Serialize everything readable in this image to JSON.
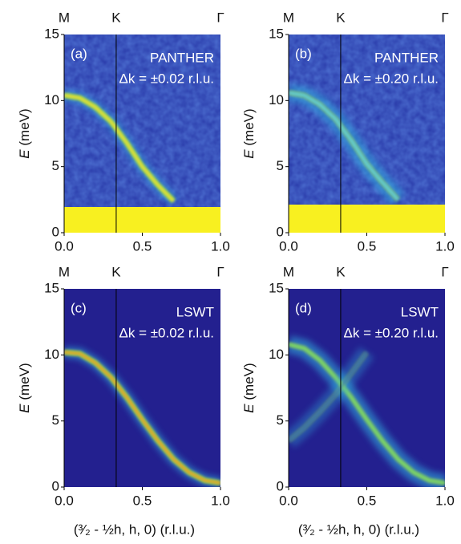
{
  "chart_data": [
    {
      "type": "dispersion",
      "panel_label": "(a)",
      "instrument": "PANTHER",
      "resolution": "Δk = ±0.02 r.l.u.",
      "ylabel_symbol": "E",
      "ylabel_unit": "(meV)",
      "top_ticks": [
        {
          "value": 0,
          "label": "M"
        },
        {
          "value": 0.333,
          "label": "K"
        },
        {
          "value": 1,
          "label": "Γ"
        }
      ],
      "x": [
        0,
        0.1,
        0.2,
        0.3,
        0.4,
        0.5,
        0.6,
        0.7,
        0.8,
        0.9,
        1.0
      ],
      "series": [
        {
          "color": "#f0e030",
          "values": [
            10.4,
            10.2,
            9.5,
            8.4,
            6.8,
            5.0,
            3.6,
            2.4,
            null,
            null,
            null
          ]
        }
      ],
      "xlim": [
        0,
        1
      ],
      "ylim": [
        0,
        15
      ],
      "xticks": [
        {
          "value": 0,
          "label": "0.0"
        },
        {
          "value": 0.5,
          "label": "0.5"
        },
        {
          "value": 1,
          "label": "1.0"
        }
      ],
      "yticks": [
        0,
        5,
        10,
        15
      ]
    },
    {
      "type": "dispersion",
      "panel_label": "(b)",
      "instrument": "PANTHER",
      "resolution": "Δk = ±0.20 r.l.u.",
      "ylabel_symbol": "E",
      "ylabel_unit": "(meV)",
      "top_ticks": [
        {
          "value": 0,
          "label": "M"
        },
        {
          "value": 0.333,
          "label": "K"
        },
        {
          "value": 1,
          "label": "Γ"
        }
      ],
      "x": [
        0,
        0.1,
        0.2,
        0.3,
        0.4,
        0.5,
        0.6,
        0.7,
        0.8,
        0.9,
        1.0
      ],
      "series": [
        {
          "color": "#60d0e0",
          "values": [
            10.6,
            10.4,
            9.7,
            8.6,
            7.0,
            5.2,
            3.8,
            2.5,
            null,
            null,
            null
          ]
        }
      ],
      "xlim": [
        0,
        1
      ],
      "ylim": [
        0,
        15
      ],
      "xticks": [
        {
          "value": 0,
          "label": "0.0"
        },
        {
          "value": 0.5,
          "label": "0.5"
        },
        {
          "value": 1,
          "label": "1.0"
        }
      ],
      "yticks": [
        0,
        5,
        10,
        15
      ]
    },
    {
      "type": "dispersion",
      "panel_label": "(c)",
      "instrument": "LSWT",
      "resolution": "Δk = ±0.02 r.l.u.",
      "ylabel_symbol": "E",
      "ylabel_unit": "(meV)",
      "xlabel": "(³⁄₂ - ½h, h, 0) (r.l.u.)",
      "top_ticks": [
        {
          "value": 0,
          "label": "M"
        },
        {
          "value": 0.333,
          "label": "K"
        },
        {
          "value": 1,
          "label": "Γ"
        }
      ],
      "x": [
        0,
        0.1,
        0.2,
        0.3,
        0.4,
        0.5,
        0.6,
        0.7,
        0.8,
        0.9,
        1.0
      ],
      "series": [
        {
          "color": "#f0a020",
          "values": [
            10.2,
            10.1,
            9.4,
            8.3,
            6.8,
            5.1,
            3.5,
            2.1,
            1.1,
            0.5,
            0.3
          ]
        }
      ],
      "xlim": [
        0,
        1
      ],
      "ylim": [
        0,
        15
      ],
      "xticks": [
        {
          "value": 0,
          "label": "0.0"
        },
        {
          "value": 0.5,
          "label": "0.5"
        },
        {
          "value": 1,
          "label": "1.0"
        }
      ],
      "yticks": [
        0,
        5,
        10,
        15
      ]
    },
    {
      "type": "dispersion",
      "panel_label": "(d)",
      "instrument": "LSWT",
      "resolution": "Δk = ±0.20 r.l.u.",
      "ylabel_symbol": "E",
      "ylabel_unit": "(meV)",
      "xlabel": "(³⁄₂ - ½h, h, 0) (r.l.u.)",
      "top_ticks": [
        {
          "value": 0,
          "label": "M"
        },
        {
          "value": 0.333,
          "label": "K"
        },
        {
          "value": 1,
          "label": "Γ"
        }
      ],
      "x": [
        0,
        0.1,
        0.2,
        0.3,
        0.4,
        0.5,
        0.6,
        0.7,
        0.8,
        0.9,
        1.0
      ],
      "series": [
        {
          "color": "#80e060",
          "values": [
            10.8,
            10.5,
            9.6,
            8.3,
            6.8,
            5.1,
            3.5,
            2.1,
            1.1,
            0.5,
            0.3
          ]
        },
        {
          "color": "#3070c0",
          "values": [
            3.5,
            4.5,
            5.7,
            7.0,
            8.6,
            10.2,
            null,
            null,
            null,
            null,
            null
          ]
        }
      ],
      "xlim": [
        0,
        1
      ],
      "ylim": [
        0,
        15
      ],
      "xticks": [
        {
          "value": 0,
          "label": "0.0"
        },
        {
          "value": 0.5,
          "label": "0.5"
        },
        {
          "value": 1,
          "label": "1.0"
        }
      ],
      "yticks": [
        0,
        5,
        10,
        15
      ]
    }
  ]
}
